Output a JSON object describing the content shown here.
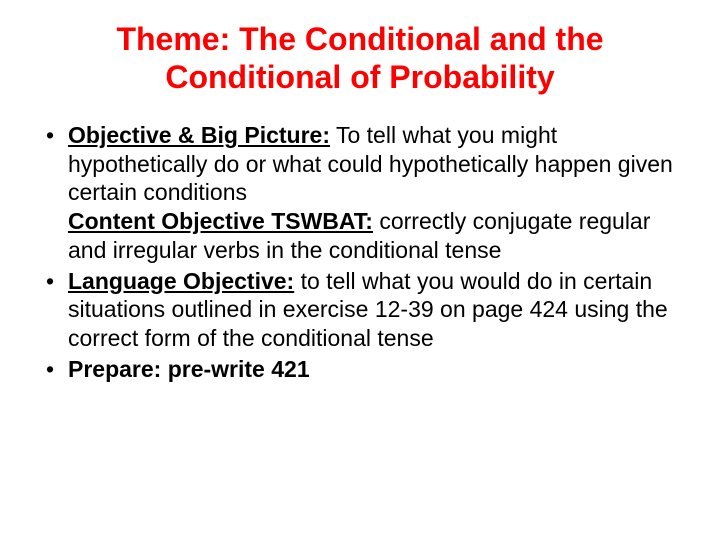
{
  "title": {
    "text": "Theme: The Conditional and the Conditional of Probability",
    "color": "#ff0000",
    "fontsize": 32
  },
  "body": {
    "color": "#000000",
    "fontsize": 23
  },
  "bullets": [
    {
      "label": "Objective & Big Picture:",
      "text1": " To tell what you might hypothetically do or what could hypothetically happen given certain conditions",
      "label2": "Content Objective TSWBAT:",
      "text2": " correctly conjugate regular and irregular verbs in the conditional tense"
    },
    {
      "label": "Language Objective:",
      "text1": " to tell what you would do in certain situations outlined in exercise 12-39 on page 424 using the correct form of the conditional tense"
    },
    {
      "label": "Prepare: pre-write 421",
      "text1": ""
    }
  ]
}
